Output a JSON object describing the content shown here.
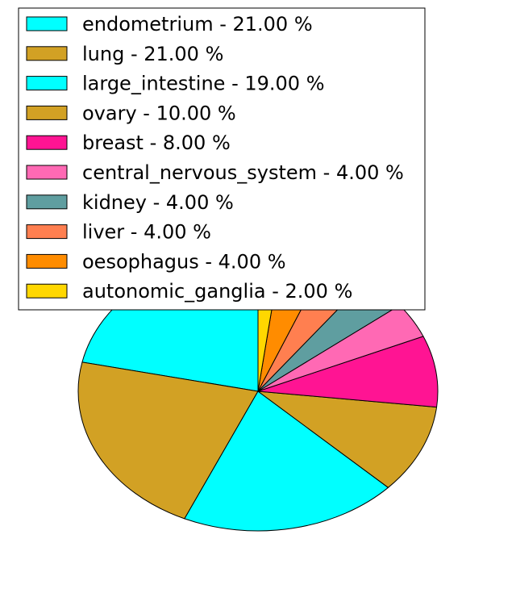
{
  "chart_data": {
    "type": "pie",
    "title": "",
    "legend_placement": "top-left",
    "slices": [
      {
        "label": "endometrium",
        "value": 21.0,
        "legend_text": "endometrium - 21.00 %",
        "color": "#00ffff"
      },
      {
        "label": "lung",
        "value": 21.0,
        "legend_text": "lung - 21.00 %",
        "color": "#d2a124"
      },
      {
        "label": "large_intestine",
        "value": 19.0,
        "legend_text": "large_intestine - 19.00 %",
        "color": "#00ffff"
      },
      {
        "label": "ovary",
        "value": 10.0,
        "legend_text": "ovary - 10.00 %",
        "color": "#d2a124"
      },
      {
        "label": "breast",
        "value": 8.0,
        "legend_text": "breast - 8.00 %",
        "color": "#ff1493"
      },
      {
        "label": "central_nervous_system",
        "value": 4.0,
        "legend_text": "central_nervous_system - 4.00 %",
        "color": "#ff69b4"
      },
      {
        "label": "kidney",
        "value": 4.0,
        "legend_text": "kidney - 4.00 %",
        "color": "#5f9ea0"
      },
      {
        "label": "liver",
        "value": 4.0,
        "legend_text": "liver - 4.00 %",
        "color": "#ff7f50"
      },
      {
        "label": "oesophagus",
        "value": 4.0,
        "legend_text": "oesophagus - 4.00 %",
        "color": "#ff8c00"
      },
      {
        "label": "autonomic_ganglia",
        "value": 2.0,
        "legend_text": "autonomic_ganglia - 2.00 %",
        "color": "#ffd700"
      }
    ]
  }
}
